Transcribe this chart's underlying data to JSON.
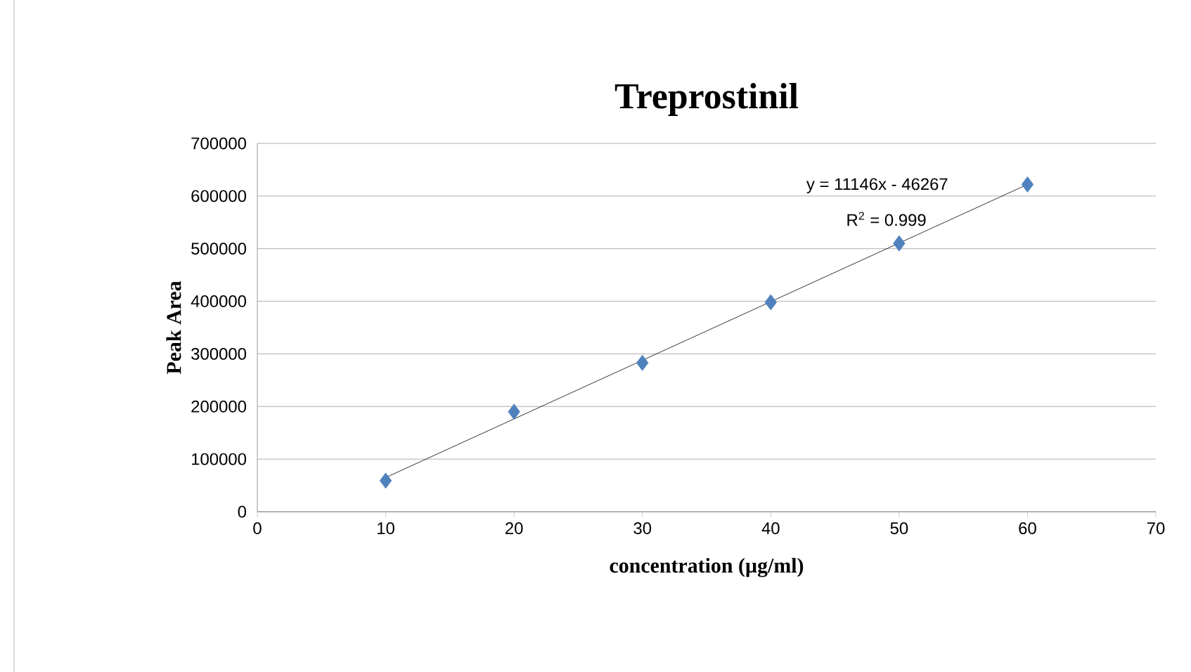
{
  "chart_data": {
    "type": "scatter",
    "title": "Treprostinil",
    "xlabel": "concentration (µg/ml)",
    "ylabel": "Peak Area",
    "annotations": [
      "y = 11146x - 46267",
      "R$^{2}$ = 0.999"
    ],
    "series": [
      {
        "color": "#4f81bd",
        "marker": "diamond",
        "x": [
          10,
          20,
          30,
          40,
          50,
          60
        ],
        "values": [
          59000,
          190000,
          283000,
          398000,
          510000,
          622000
        ]
      },
      {
        "type": "line",
        "color": "#000000",
        "marker": "none",
        "x": [
          10,
          60
        ],
        "values": [
          65000,
          622000
        ]
      }
    ],
    "xlim": [
      0,
      70
    ],
    "xticks": [
      0,
      10,
      20,
      30,
      40,
      50,
      60,
      70
    ],
    "ylim": [
      0,
      700000
    ],
    "yticks": [
      0,
      100000,
      200000,
      300000,
      400000,
      500000,
      600000,
      700000
    ],
    "grid": "y"
  }
}
